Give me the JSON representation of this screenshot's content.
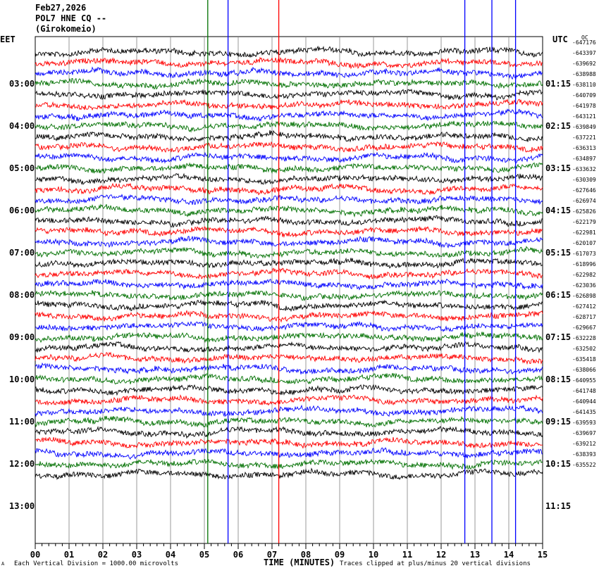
{
  "header": {
    "date": "Feb27,2026",
    "station": "POL7 HNE CQ --",
    "location": "(Girokomeio)"
  },
  "left_zone_label": "EET",
  "right_zone_label": "UTC",
  "corner_mark": "OC",
  "bottom_left_mark": "A",
  "footer": {
    "scale_note": "Each Vertical Division = 1000.00 microvolts",
    "clip_note": "Traces clipped at plus/minus 20 vertical divisions"
  },
  "chart_data": {
    "type": "line",
    "title": "",
    "xlabel": "TIME (MINUTES)",
    "ylabel": "",
    "xlim": [
      0,
      15
    ],
    "x_ticks": [
      "00",
      "01",
      "02",
      "03",
      "04",
      "05",
      "06",
      "07",
      "08",
      "09",
      "10",
      "11",
      "12",
      "13",
      "14",
      "15"
    ],
    "trace_colors": [
      "#000000",
      "#ff0000",
      "#0000ff",
      "#007000"
    ],
    "grid": "vertical lines every minute",
    "left_time_labels": [
      "03:00",
      "04:00",
      "05:00",
      "06:00",
      "07:00",
      "08:00",
      "09:00",
      "10:00",
      "11:00",
      "12:00",
      "13:00"
    ],
    "right_time_labels": [
      "01:15",
      "02:15",
      "03:15",
      "04:15",
      "05:15",
      "06:15",
      "07:15",
      "08:15",
      "09:15",
      "10:15",
      "11:15"
    ],
    "trace_offsets": [
      "-647176",
      "-643397",
      "-639692",
      "-638988",
      "-638110",
      "-640709",
      "-641978",
      "-643121",
      "-639849",
      "-637221",
      "-636313",
      "-634897",
      "-633632",
      "-630309",
      "-627646",
      "-626974",
      "-625826",
      "-622179",
      "-622981",
      "-620107",
      "-617073",
      "-618996",
      "-622982",
      "-623036",
      "-626898",
      "-627412",
      "-628717",
      "-629667",
      "-632228",
      "-632502",
      "-635418",
      "-638066",
      "-640955",
      "-641748",
      "-640944",
      "-641435",
      "-639593",
      "-639697",
      "-639212",
      "-638393",
      "-635522"
    ],
    "events": [
      {
        "color": "#0000ff",
        "minute": 5.7
      },
      {
        "color": "#ff0000",
        "minute": 7.2
      },
      {
        "color": "#0000ff",
        "minute": 13.5
      },
      {
        "color": "#0000ff",
        "minute": 14.2
      },
      {
        "color": "#0000ff",
        "minute": 12.7
      },
      {
        "color": "#007000",
        "minute": 5.1
      }
    ]
  }
}
